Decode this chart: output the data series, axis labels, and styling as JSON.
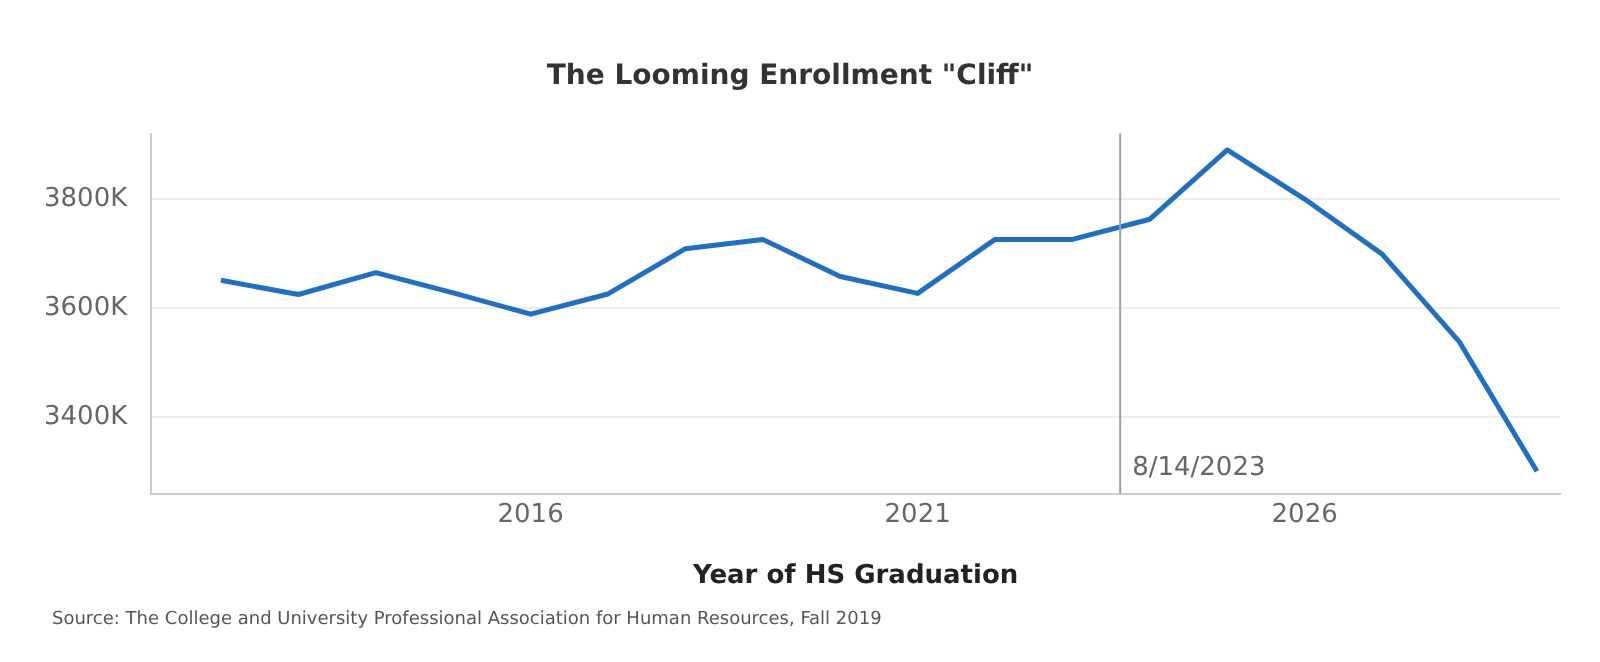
{
  "chart_data": {
    "type": "line",
    "title": "The Looming Enrollment \"Cliff\"",
    "xlabel": "Year of HS Graduation",
    "x": [
      "2012",
      "2013",
      "2014",
      "2015",
      "2016",
      "2017",
      "2018",
      "2019",
      "2020",
      "2021",
      "2022",
      "2023",
      "2024",
      "2025",
      "2026",
      "2027",
      "2028",
      "2029"
    ],
    "series": [
      {
        "color": "#1f6fc5",
        "values": [
          3651,
          3625,
          3665,
          3628,
          3589,
          3626,
          3709,
          3726,
          3658,
          3627,
          3726,
          3726,
          3763,
          3890,
          3800,
          3699,
          3538,
          3301
        ]
      }
    ],
    "xlim": [
      "2011-02-06",
      "2029-04-20"
    ],
    "xticks": [
      "2016",
      "2021",
      "2026"
    ],
    "ylim": [
      3260,
      3920
    ],
    "yticks": [
      {
        "value": 3400,
        "label": "3400K"
      },
      {
        "value": 3600,
        "label": "3600K"
      },
      {
        "value": 3800,
        "label": "3800K"
      }
    ],
    "grid": "y",
    "legend": false,
    "marker": "none",
    "line_style": "solid",
    "ref_lines": [
      {
        "axis": "x",
        "value": "2023-08-14",
        "label": "8/14/2023",
        "color": "#9aa0a6"
      }
    ],
    "annotations": [
      "Source: The College and University Professional Association for Human Resources, Fall 2019"
    ]
  }
}
